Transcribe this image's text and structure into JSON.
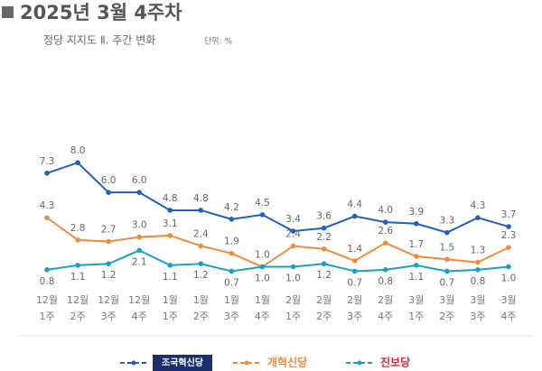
{
  "chart_data": {
    "type": "line",
    "title": "2025년 3월 4주차",
    "subtitle": "정당 지지도 Ⅱ. 주간 변화",
    "unit": "단위: %",
    "categories": [
      [
        "12월",
        "1주"
      ],
      [
        "12월",
        "2주"
      ],
      [
        "12월",
        "3주"
      ],
      [
        "12월",
        "4주"
      ],
      [
        "1월",
        "1주"
      ],
      [
        "1월",
        "2주"
      ],
      [
        "1월",
        "3주"
      ],
      [
        "1월",
        "4주"
      ],
      [
        "2월",
        "1주"
      ],
      [
        "2월",
        "2주"
      ],
      [
        "2월",
        "3주"
      ],
      [
        "2월",
        "4주"
      ],
      [
        "3월",
        "1주"
      ],
      [
        "3월",
        "2주"
      ],
      [
        "3월",
        "3주"
      ],
      [
        "3월",
        "4주"
      ]
    ],
    "ylim": [
      0,
      8.5
    ],
    "series": [
      {
        "name": "조국혁신당",
        "color": "#1f5fbf",
        "values": [
          7.3,
          8.0,
          6.0,
          6.0,
          4.8,
          4.8,
          4.2,
          4.5,
          3.4,
          3.6,
          4.4,
          4.0,
          3.9,
          3.3,
          4.3,
          3.7
        ],
        "value_labels": [
          "7.3",
          "8.0",
          "6.0",
          "6.0",
          "4.8",
          "4.8",
          "4.2",
          "4.5",
          "3.4",
          "3.6",
          "4.4",
          "4.0",
          "3.9",
          "3.3",
          "4.3",
          "3.7"
        ]
      },
      {
        "name": "개혁신당",
        "color": "#f08a3c",
        "values": [
          4.3,
          2.8,
          2.7,
          3.0,
          3.1,
          2.4,
          1.9,
          1.0,
          2.4,
          2.2,
          1.4,
          2.6,
          1.7,
          1.5,
          1.3,
          2.3
        ],
        "value_labels": [
          "4.3",
          "2.8",
          "2.7",
          "3.0",
          "3.1",
          "2.4",
          "1.9",
          "1.0",
          "2.4",
          "2.2",
          "1.4",
          "2.6",
          "1.7",
          "1.5",
          "1.3",
          "2.3"
        ]
      },
      {
        "name": "진보당",
        "color": "#1aa0c8",
        "values": [
          0.8,
          1.1,
          1.2,
          2.1,
          1.1,
          1.2,
          0.7,
          1.0,
          1.0,
          1.2,
          0.7,
          0.8,
          1.1,
          0.7,
          0.8,
          1.0
        ],
        "value_labels": [
          "0.8",
          "1.1",
          "1.2",
          "2.1",
          "1.1",
          "1.2",
          "0.7",
          "1.0",
          "1.0",
          "1.2",
          "0.7",
          "0.8",
          "1.1",
          "0.7",
          "0.8",
          "1.0"
        ]
      }
    ]
  }
}
